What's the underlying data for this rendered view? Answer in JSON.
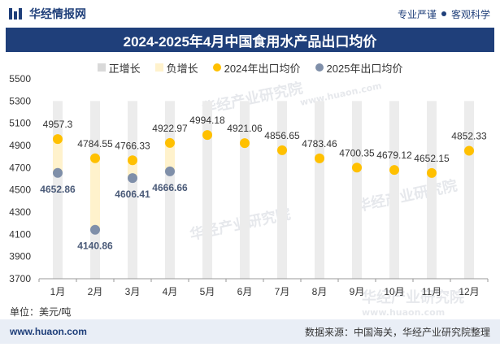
{
  "brand": {
    "name": "华经情报网"
  },
  "slogan": {
    "left": "专业严谨",
    "right": "客观科学"
  },
  "footer": {
    "site": "www.huaon.com",
    "source": "数据来源：中国海关，华经产业研究院整理"
  },
  "watermark": {
    "cn": "华经产业研究院",
    "url": "www.huaon.com"
  },
  "colors": {
    "brand": "#1f3f7a",
    "pos_bar": "#d9d9d9",
    "neg_bar": "#fff2cc",
    "s2024": "#ffc000",
    "s2025": "#7f8fa9"
  },
  "chart_data": {
    "type": "bar",
    "title": "2024-2025年4月中国食用水产品出口均价",
    "unit_label": "单位：美元/吨",
    "categories": [
      "1月",
      "2月",
      "3月",
      "4月",
      "5月",
      "6月",
      "7月",
      "8月",
      "9月",
      "10月",
      "11月",
      "12月"
    ],
    "ylim": [
      3700,
      5500
    ],
    "yticks": [
      3700,
      3900,
      4100,
      4300,
      4500,
      4700,
      4900,
      5100,
      5300,
      5500
    ],
    "legend": [
      "正增长",
      "负增长",
      "2024年出口均价",
      "2025年出口均价"
    ],
    "legend_position": "top",
    "series": [
      {
        "name": "2024年出口均价",
        "type": "scatter",
        "color": "#ffc000",
        "values": [
          4957.3,
          4784.55,
          4766.33,
          4922.97,
          4994.18,
          4921.06,
          4856.65,
          4783.46,
          4700.35,
          4679.12,
          4652.15,
          4852.33
        ]
      },
      {
        "name": "2025年出口均价",
        "type": "scatter",
        "color": "#7f8fa9",
        "values": [
          4652.86,
          4140.86,
          4606.41,
          4666.66,
          null,
          null,
          null,
          null,
          null,
          null,
          null,
          null
        ]
      }
    ],
    "bars": {
      "positive_color": "#d9d9d9",
      "negative_color": "#fff2cc"
    },
    "grid": false
  }
}
